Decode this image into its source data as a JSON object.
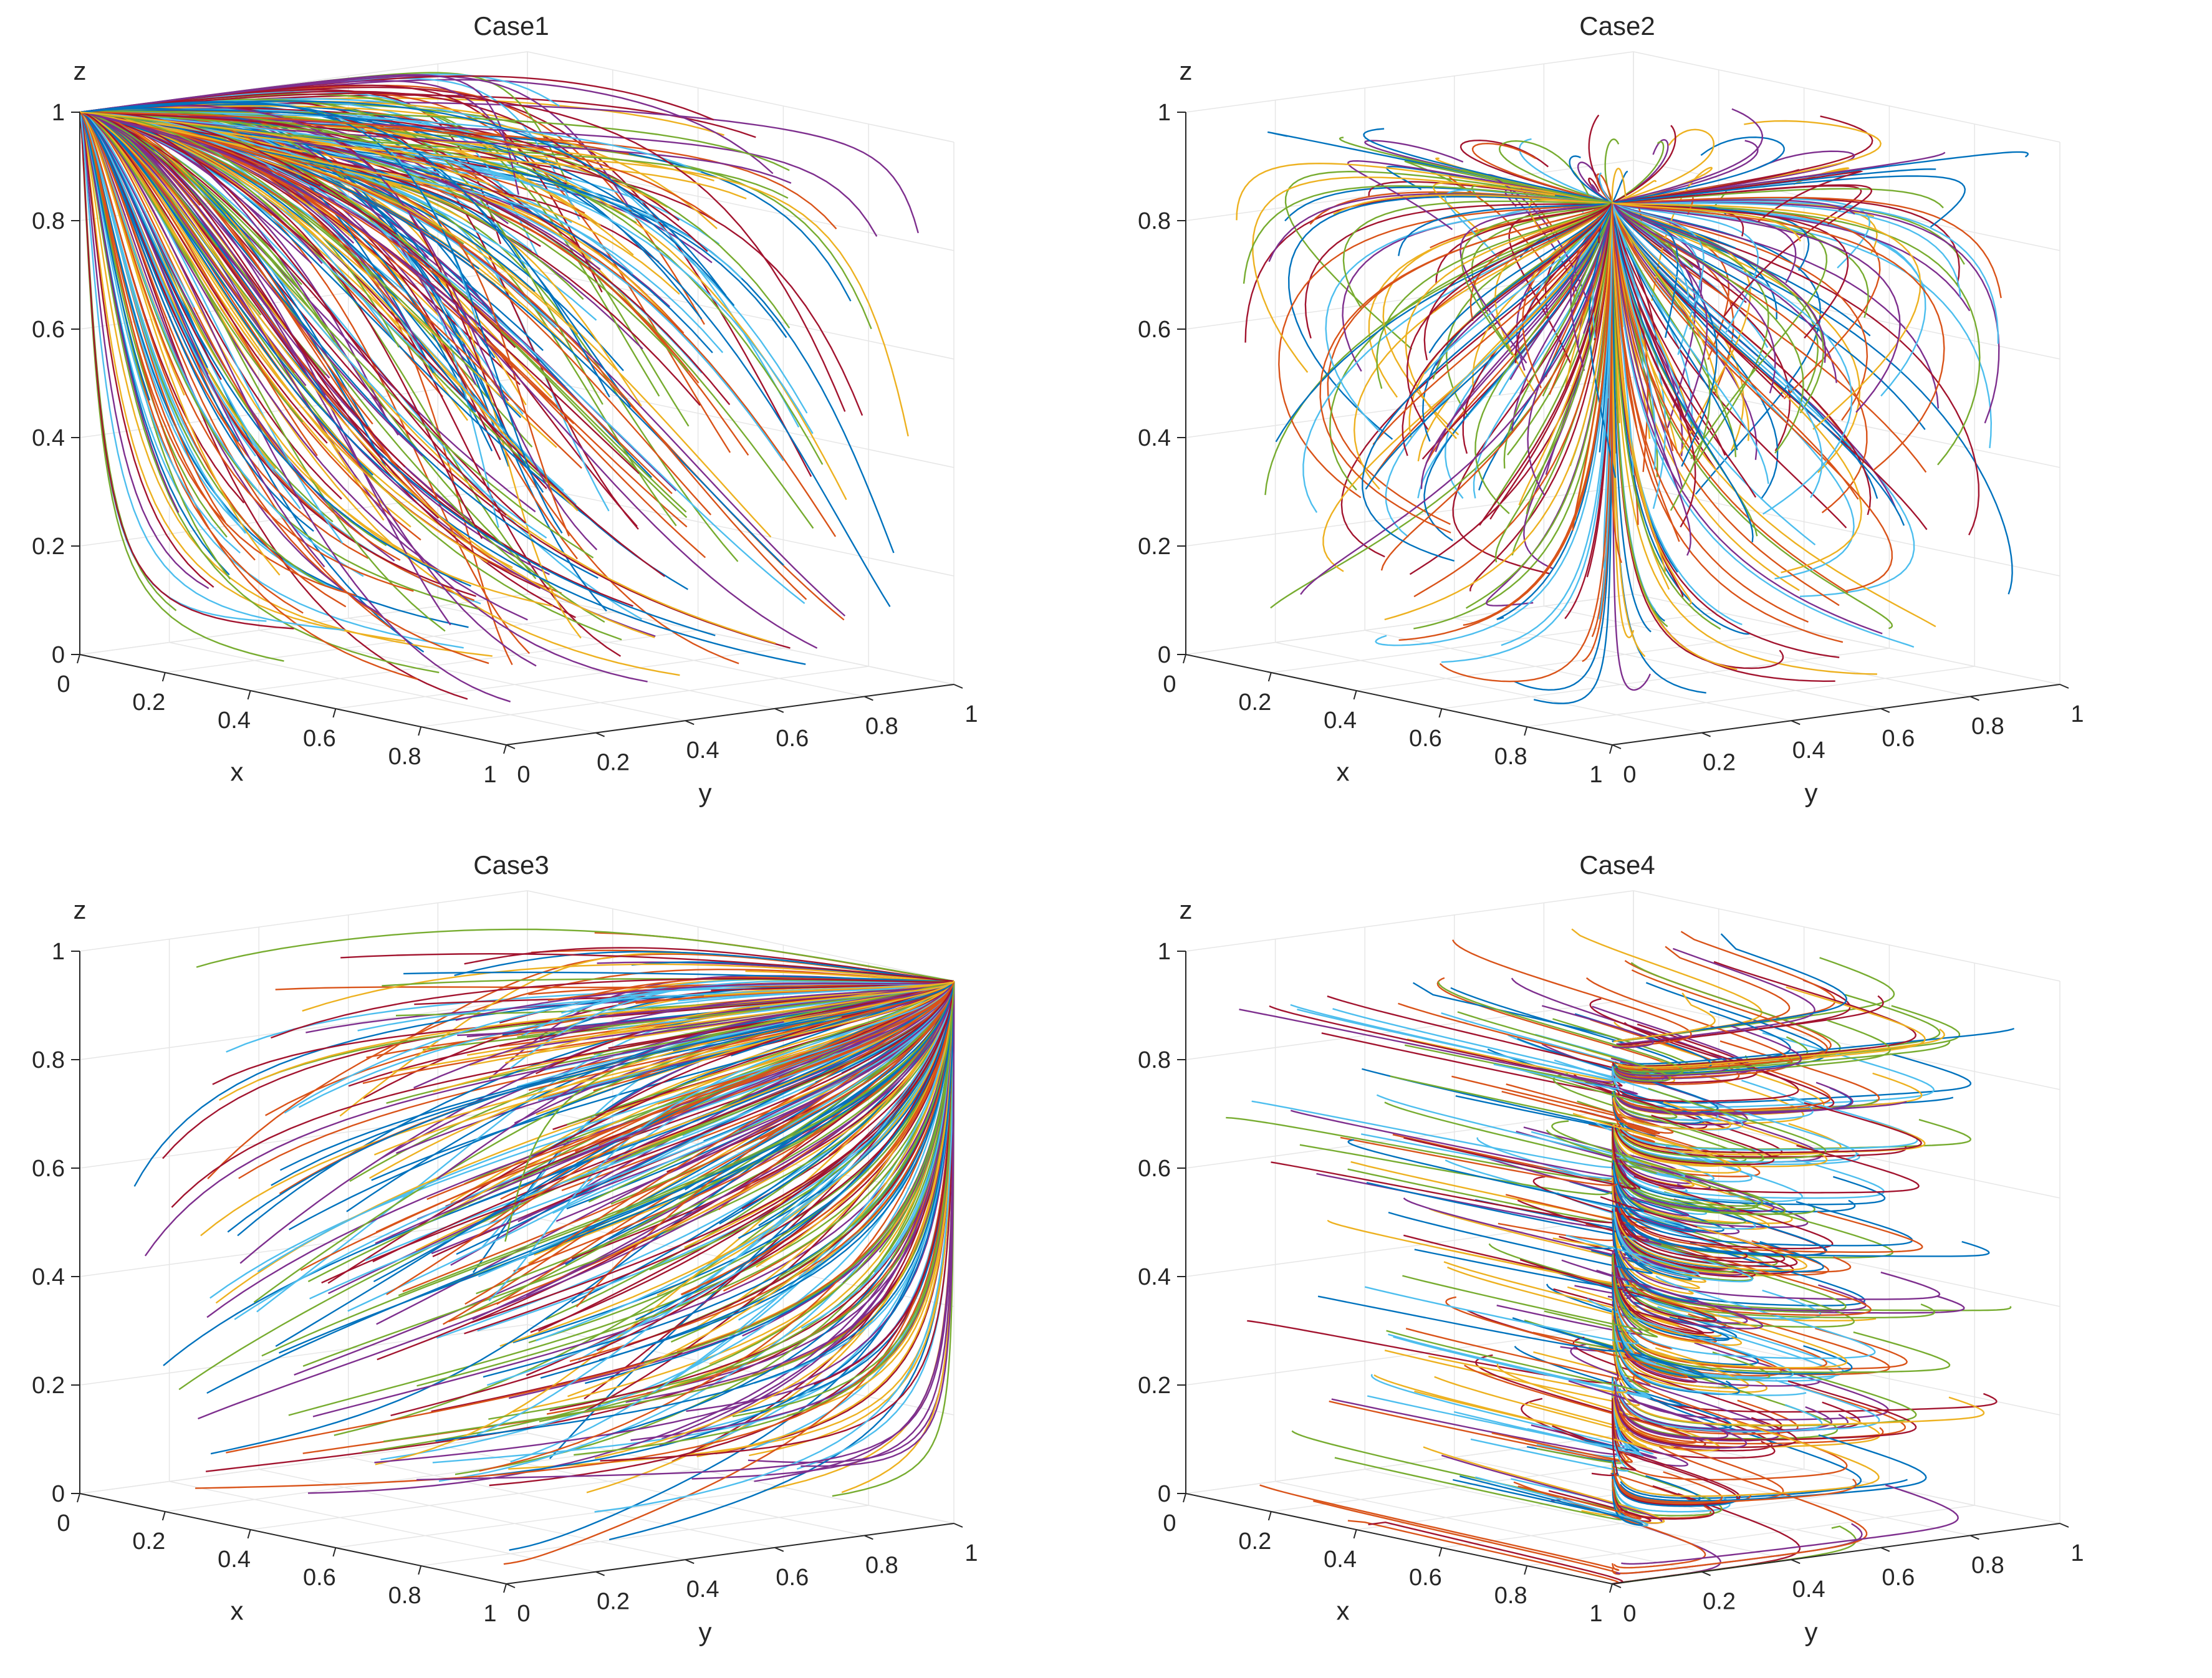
{
  "chart_data": [
    {
      "type": "line",
      "title": "Case1",
      "xlabel": "x",
      "ylabel": "y",
      "zlabel": "z",
      "xlim": [
        0,
        1
      ],
      "ylim": [
        0,
        1
      ],
      "zlim": [
        0,
        1
      ],
      "x_ticks": [
        "0",
        "0.2",
        "0.4",
        "0.6",
        "0.8",
        "1"
      ],
      "y_ticks": [
        "0",
        "0.2",
        "0.4",
        "0.6",
        "0.8",
        "1"
      ],
      "z_ticks": [
        "0",
        "0.2",
        "0.4",
        "0.6",
        "0.8",
        "1"
      ],
      "grid": true,
      "series_colors": [
        "#0072BD",
        "#D95319",
        "#EDB120",
        "#7E2F8E",
        "#77AC30",
        "#4DBEEE",
        "#A2142F"
      ],
      "trajectories_description_count": 400,
      "equilibrium": [
        0,
        0,
        1
      ]
    },
    {
      "type": "line",
      "title": "Case2",
      "xlabel": "x",
      "ylabel": "y",
      "zlabel": "z",
      "xlim": [
        0,
        1
      ],
      "ylim": [
        0,
        1
      ],
      "zlim": [
        0,
        1
      ],
      "x_ticks": [
        "0",
        "0.2",
        "0.4",
        "0.6",
        "0.8",
        "1"
      ],
      "y_ticks": [
        "0",
        "0.2",
        "0.4",
        "0.6",
        "0.8",
        "1"
      ],
      "z_ticks": [
        "0",
        "0.2",
        "0.4",
        "0.6",
        "0.8",
        "1"
      ],
      "grid": true,
      "series_colors": [
        "#0072BD",
        "#D95319",
        "#EDB120",
        "#7E2F8E",
        "#77AC30",
        "#4DBEEE",
        "#A2142F"
      ],
      "trajectories_description_count": 400,
      "equilibrium": [
        1,
        0,
        1
      ]
    },
    {
      "type": "line",
      "title": "Case3",
      "xlabel": "x",
      "ylabel": "y",
      "zlabel": "z",
      "xlim": [
        0,
        1
      ],
      "ylim": [
        0,
        1
      ],
      "zlim": [
        0,
        1
      ],
      "x_ticks": [
        "0",
        "0.2",
        "0.4",
        "0.6",
        "0.8",
        "1"
      ],
      "y_ticks": [
        "0",
        "0.2",
        "0.4",
        "0.6",
        "0.8",
        "1"
      ],
      "z_ticks": [
        "0",
        "0.2",
        "0.4",
        "0.6",
        "0.8",
        "1"
      ],
      "grid": true,
      "series_colors": [
        "#0072BD",
        "#D95319",
        "#EDB120",
        "#7E2F8E",
        "#77AC30",
        "#4DBEEE",
        "#A2142F"
      ],
      "trajectories_description_count": 400,
      "equilibrium": [
        1,
        1,
        1
      ]
    },
    {
      "type": "line",
      "title": "Case4",
      "xlabel": "x",
      "ylabel": "y",
      "zlabel": "z",
      "xlim": [
        0,
        1
      ],
      "ylim": [
        0,
        1
      ],
      "zlim": [
        0,
        1
      ],
      "x_ticks": [
        "0",
        "0.2",
        "0.4",
        "0.6",
        "0.8",
        "1"
      ],
      "y_ticks": [
        "0",
        "0.2",
        "0.4",
        "0.6",
        "0.8",
        "1"
      ],
      "z_ticks": [
        "0",
        "0.2",
        "0.4",
        "0.6",
        "0.8",
        "1"
      ],
      "grid": true,
      "series_colors": [
        "#0072BD",
        "#D95319",
        "#EDB120",
        "#7E2F8E",
        "#77AC30",
        "#4DBEEE",
        "#A2142F"
      ],
      "trajectories_description_count": 400,
      "equilibrium": [
        1,
        0,
        null
      ]
    }
  ]
}
